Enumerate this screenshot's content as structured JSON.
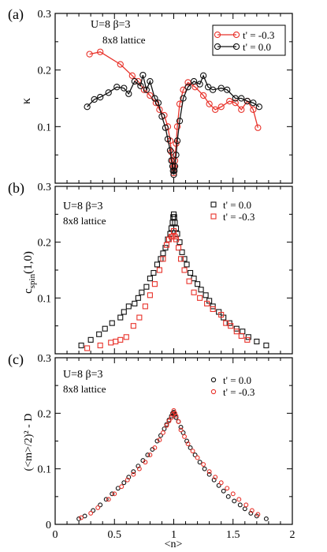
{
  "figure": {
    "x_tick_labels": [
      "0",
      "0.5",
      "1",
      "1.5",
      "2"
    ],
    "xlabel": "<n>"
  },
  "chart_data": [
    {
      "panel": "(a)",
      "type": "line",
      "annotations": [
        "U=8   β=3",
        "8x8 lattice"
      ],
      "ylabel": "κ",
      "xlim": [
        0,
        2
      ],
      "ylim": [
        0,
        0.3
      ],
      "y_tick_labels": [
        "0.1",
        "0.2",
        "0.3"
      ],
      "grid": false,
      "legend_position": "top-right",
      "series": [
        {
          "name": "t' = -0.3",
          "color": "#e8322a",
          "marker": "circle",
          "x": [
            0.29,
            0.38,
            0.55,
            0.65,
            0.7,
            0.75,
            0.8,
            0.85,
            0.88,
            0.92,
            0.95,
            0.97,
            0.98,
            0.99,
            0.995,
            1.0,
            1.005,
            1.01,
            1.02,
            1.03,
            1.05,
            1.08,
            1.12,
            1.18,
            1.25,
            1.3,
            1.35,
            1.4,
            1.47,
            1.52,
            1.57,
            1.62,
            1.67,
            1.71
          ],
          "y": [
            0.228,
            0.232,
            0.21,
            0.19,
            0.18,
            0.165,
            0.155,
            0.142,
            0.13,
            0.12,
            0.1,
            0.075,
            0.055,
            0.04,
            0.028,
            0.018,
            0.028,
            0.04,
            0.07,
            0.1,
            0.14,
            0.165,
            0.178,
            0.17,
            0.155,
            0.14,
            0.13,
            0.135,
            0.145,
            0.142,
            0.13,
            0.145,
            0.13,
            0.098
          ]
        },
        {
          "name": "t' = 0.0",
          "color": "#111111",
          "marker": "circle",
          "x": [
            0.27,
            0.33,
            0.38,
            0.45,
            0.52,
            0.58,
            0.62,
            0.67,
            0.72,
            0.74,
            0.77,
            0.8,
            0.84,
            0.87,
            0.9,
            0.93,
            0.95,
            0.97,
            0.98,
            0.99,
            0.995,
            1.0,
            1.005,
            1.01,
            1.02,
            1.03,
            1.05,
            1.08,
            1.12,
            1.17,
            1.22,
            1.25,
            1.29,
            1.33,
            1.4,
            1.45,
            1.52,
            1.57,
            1.62,
            1.67,
            1.72
          ],
          "y": [
            0.135,
            0.148,
            0.152,
            0.16,
            0.17,
            0.168,
            0.158,
            0.18,
            0.172,
            0.191,
            0.165,
            0.18,
            0.15,
            0.142,
            0.118,
            0.098,
            0.078,
            0.058,
            0.04,
            0.03,
            0.022,
            0.015,
            0.022,
            0.03,
            0.05,
            0.075,
            0.11,
            0.15,
            0.17,
            0.18,
            0.175,
            0.19,
            0.17,
            0.165,
            0.168,
            0.165,
            0.15,
            0.15,
            0.145,
            0.142,
            0.135
          ]
        }
      ]
    },
    {
      "panel": "(b)",
      "type": "scatter",
      "annotations": [
        "U=8   β=3",
        "8x8 lattice"
      ],
      "ylabel": "c_spin(1,0)",
      "ylabel_main": "c",
      "ylabel_sub": "spin",
      "ylabel_tail": "(1,0)",
      "xlim": [
        0,
        2
      ],
      "ylim": [
        0,
        0.3
      ],
      "y_tick_labels": [
        "0.1",
        "0.2",
        "0.3"
      ],
      "grid": false,
      "legend_position": "top-right",
      "series": [
        {
          "name": "t' =  0.0",
          "color": "#111111",
          "marker": "square",
          "x": [
            0.22,
            0.3,
            0.37,
            0.42,
            0.48,
            0.55,
            0.58,
            0.62,
            0.67,
            0.7,
            0.73,
            0.77,
            0.8,
            0.83,
            0.86,
            0.89,
            0.91,
            0.93,
            0.95,
            0.97,
            0.98,
            0.99,
            0.995,
            1.0,
            1.005,
            1.01,
            1.02,
            1.03,
            1.05,
            1.07,
            1.09,
            1.11,
            1.14,
            1.17,
            1.2,
            1.23,
            1.27,
            1.3,
            1.33,
            1.38,
            1.42,
            1.47,
            1.53,
            1.58,
            1.63,
            1.7,
            1.78
          ],
          "y": [
            0.015,
            0.025,
            0.035,
            0.045,
            0.055,
            0.065,
            0.075,
            0.085,
            0.09,
            0.1,
            0.11,
            0.12,
            0.135,
            0.145,
            0.16,
            0.17,
            0.18,
            0.19,
            0.205,
            0.215,
            0.225,
            0.235,
            0.245,
            0.25,
            0.245,
            0.235,
            0.225,
            0.215,
            0.2,
            0.182,
            0.17,
            0.16,
            0.145,
            0.135,
            0.125,
            0.115,
            0.105,
            0.095,
            0.085,
            0.075,
            0.065,
            0.055,
            0.045,
            0.04,
            0.03,
            0.022,
            0.015
          ]
        },
        {
          "name": "t' = -0.3",
          "color": "#e8322a",
          "marker": "square",
          "x": [
            0.27,
            0.38,
            0.47,
            0.51,
            0.55,
            0.6,
            0.66,
            0.71,
            0.76,
            0.8,
            0.84,
            0.88,
            0.91,
            0.94,
            0.96,
            0.98,
            0.99,
            1.0,
            1.01,
            1.02,
            1.04,
            1.06,
            1.09,
            1.13,
            1.17,
            1.22,
            1.28,
            1.33,
            1.4,
            1.44,
            1.48,
            1.53,
            1.57,
            1.62
          ],
          "y": [
            0.01,
            0.015,
            0.02,
            0.022,
            0.025,
            0.03,
            0.05,
            0.065,
            0.085,
            0.105,
            0.125,
            0.15,
            0.17,
            0.195,
            0.205,
            0.21,
            0.21,
            0.22,
            0.21,
            0.205,
            0.19,
            0.17,
            0.15,
            0.13,
            0.11,
            0.1,
            0.09,
            0.08,
            0.07,
            0.055,
            0.05,
            0.04,
            0.032,
            0.025
          ]
        }
      ]
    },
    {
      "panel": "(c)",
      "type": "scatter",
      "annotations": [
        "U=8   β=3",
        "8x8 lattice"
      ],
      "ylabel": "(<m>/2)² - D",
      "xlim": [
        0,
        2
      ],
      "ylim": [
        0,
        0.3
      ],
      "y_tick_labels": [
        "0",
        "0.1",
        "0.2",
        "0.3"
      ],
      "grid": false,
      "legend_position": "top-right",
      "series": [
        {
          "name": "t' = 0.0",
          "color": "#111111",
          "marker": "circle",
          "x": [
            0.2,
            0.25,
            0.32,
            0.38,
            0.43,
            0.48,
            0.53,
            0.58,
            0.62,
            0.66,
            0.7,
            0.74,
            0.78,
            0.82,
            0.86,
            0.89,
            0.92,
            0.94,
            0.96,
            0.98,
            0.99,
            1.0,
            1.01,
            1.02,
            1.04,
            1.06,
            1.08,
            1.11,
            1.14,
            1.18,
            1.22,
            1.26,
            1.3,
            1.34,
            1.38,
            1.42,
            1.46,
            1.51,
            1.56,
            1.6,
            1.65,
            1.7,
            1.78
          ],
          "y": [
            0.01,
            0.015,
            0.025,
            0.035,
            0.045,
            0.055,
            0.065,
            0.075,
            0.085,
            0.095,
            0.105,
            0.115,
            0.125,
            0.135,
            0.15,
            0.16,
            0.172,
            0.18,
            0.188,
            0.195,
            0.2,
            0.202,
            0.198,
            0.192,
            0.185,
            0.175,
            0.165,
            0.15,
            0.138,
            0.125,
            0.112,
            0.1,
            0.09,
            0.08,
            0.07,
            0.06,
            0.05,
            0.042,
            0.035,
            0.028,
            0.02,
            0.015,
            0.01
          ]
        },
        {
          "name": "t' = -0.3",
          "color": "#e8322a",
          "marker": "circle",
          "x": [
            0.22,
            0.3,
            0.36,
            0.45,
            0.5,
            0.56,
            0.61,
            0.66,
            0.71,
            0.76,
            0.8,
            0.84,
            0.88,
            0.91,
            0.94,
            0.96,
            0.98,
            0.99,
            1.0,
            1.01,
            1.02,
            1.04,
            1.06,
            1.09,
            1.12,
            1.16,
            1.2,
            1.25,
            1.3,
            1.35,
            1.4,
            1.45,
            1.5,
            1.55,
            1.61,
            1.66,
            1.71
          ],
          "y": [
            0.012,
            0.02,
            0.03,
            0.045,
            0.055,
            0.068,
            0.08,
            0.09,
            0.1,
            0.112,
            0.125,
            0.138,
            0.152,
            0.165,
            0.178,
            0.186,
            0.192,
            0.198,
            0.205,
            0.2,
            0.195,
            0.185,
            0.17,
            0.158,
            0.145,
            0.132,
            0.12,
            0.108,
            0.095,
            0.085,
            0.075,
            0.065,
            0.055,
            0.045,
            0.035,
            0.025,
            0.018
          ]
        }
      ]
    }
  ]
}
